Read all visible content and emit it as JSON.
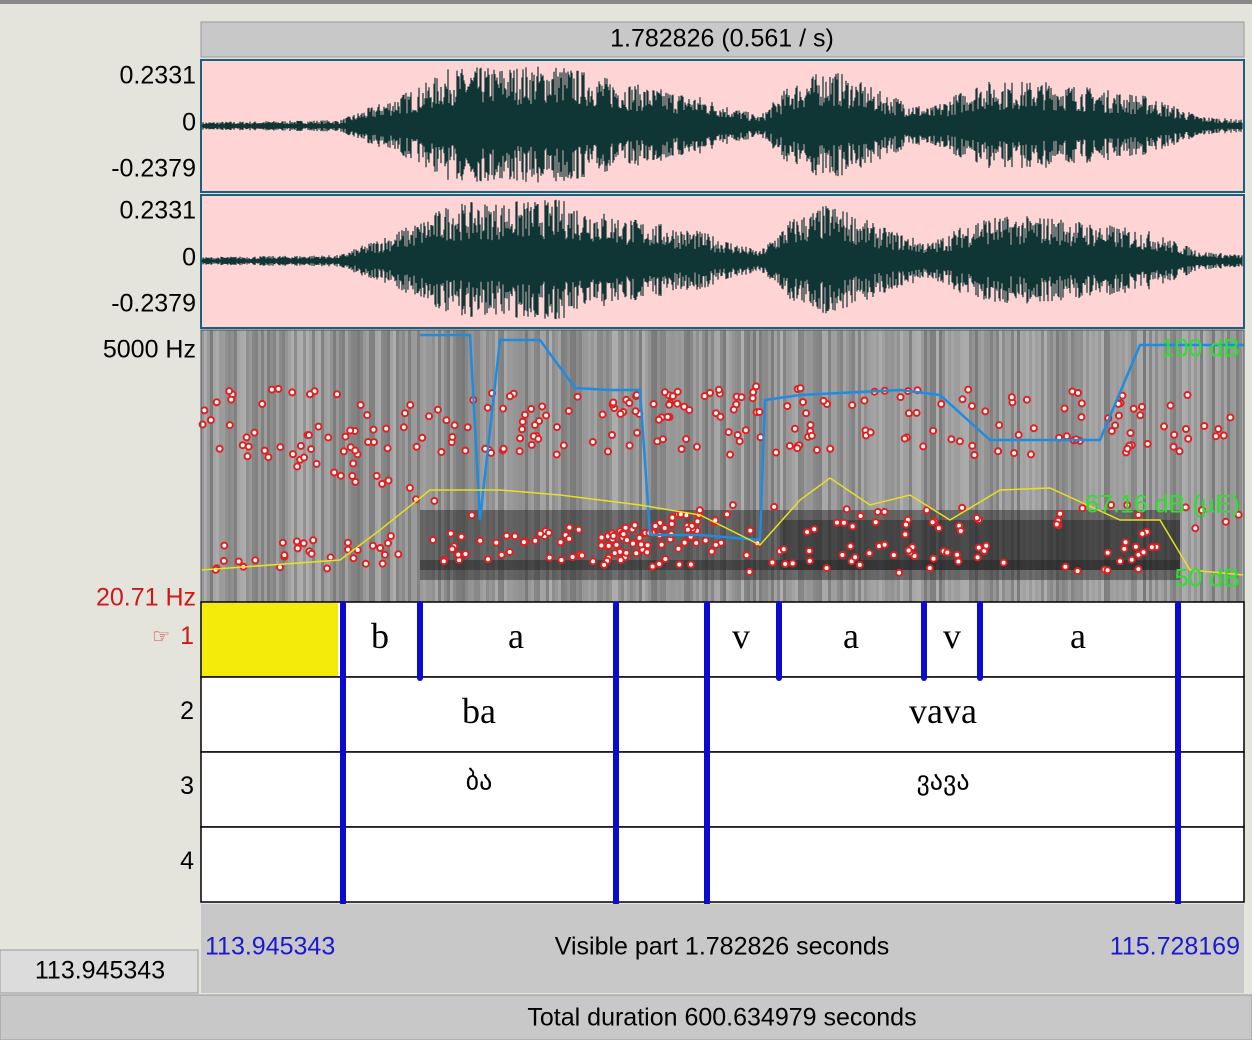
{
  "header": {
    "title": "1.782826 (0.561 / s)"
  },
  "waveform_channels": [
    {
      "max": "0.2331",
      "zero": "0",
      "min": "-0.2379"
    },
    {
      "max": "0.2331",
      "zero": "0",
      "min": "-0.2379"
    }
  ],
  "spectrogram": {
    "top_label": "5000 Hz",
    "bottom_label": "20.71 Hz",
    "intensity_top": "100 dB",
    "intensity_mid": "67.16 dB (µE)",
    "intensity_bottom": "50 dB"
  },
  "tiers": [
    {
      "number": "1",
      "pointer": "☞",
      "intervals": [
        "b",
        "a",
        "v",
        "a",
        "v",
        "a"
      ]
    },
    {
      "number": "2",
      "intervals": [
        "ba",
        "vava"
      ]
    },
    {
      "number": "3",
      "intervals": [
        "ბა",
        "ვავა"
      ]
    },
    {
      "number": "4",
      "intervals": []
    }
  ],
  "footer": {
    "start": "113.945343",
    "visible": "Visible part 1.782826 seconds",
    "end": "115.728169",
    "cursor": "113.945343",
    "total": "Total duration 600.634979 seconds"
  }
}
